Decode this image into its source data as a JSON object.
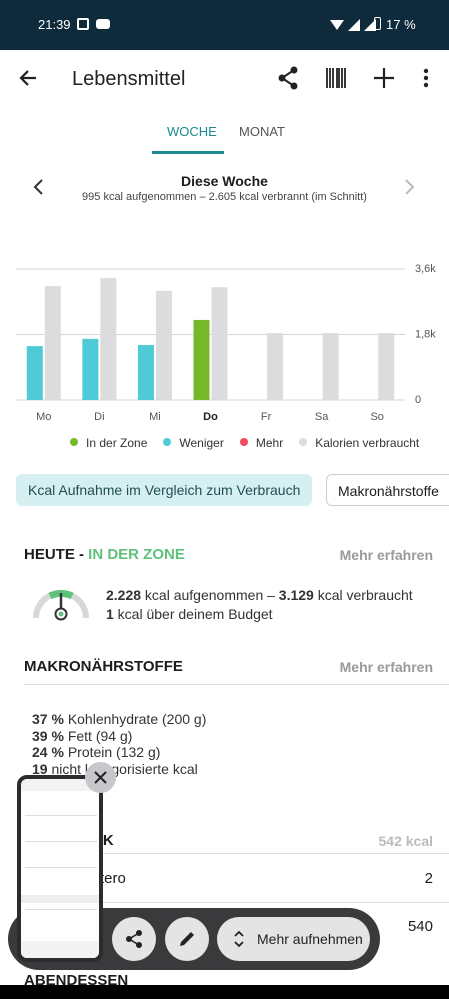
{
  "status_bar": {
    "time": "21:39",
    "battery": "17 %"
  },
  "app_bar": {
    "title": "Lebensmittel"
  },
  "tabs": [
    "WOCHE",
    "MONAT"
  ],
  "week": {
    "title": "Diese Woche",
    "subtitle": "995 kcal aufgenommen – 2.605 kcal verbrannt (im Schnitt)"
  },
  "chart_data": {
    "type": "bar",
    "categories": [
      "Mo",
      "Di",
      "Mi",
      "Do",
      "Fr",
      "Sa",
      "So"
    ],
    "series": [
      {
        "name": "In der Zone",
        "color": "#76b82a",
        "values": [
          null,
          null,
          null,
          2200,
          null,
          null,
          null
        ]
      },
      {
        "name": "Weniger",
        "color": "#4ecbd6",
        "values": [
          1480,
          1680,
          1510,
          null,
          null,
          null,
          null
        ]
      },
      {
        "name": "Mehr",
        "color": "#ef4b5e",
        "values": [
          null,
          null,
          null,
          null,
          null,
          null,
          null
        ]
      },
      {
        "name": "Kalorien verbraucht",
        "color": "#dcdcdf",
        "values": [
          3130,
          3350,
          3000,
          3100,
          1840,
          1840,
          1840
        ]
      }
    ],
    "ylim": [
      0,
      3600
    ],
    "yticks": [
      0,
      {
        "value": 1800,
        "label": "1,8k"
      },
      {
        "value": 3600,
        "label": "3,6k"
      }
    ],
    "grid": true
  },
  "chips": [
    "Kcal Aufnahme im Vergleich zum Verbrauch",
    "Makronährstoffe"
  ],
  "today": {
    "heading": "HEUTE - ",
    "status": "IN DER ZONE",
    "link": "Mehr erfahren",
    "line1": [
      "2.228",
      " kcal aufgenommen – ",
      "3.129",
      " kcal verbraucht"
    ],
    "line2": [
      "1",
      " kcal über deinem Budget"
    ]
  },
  "macros": {
    "heading": "MAKRONÄHRSTOFFE",
    "link": "Mehr erfahren",
    "rows": [
      [
        "37 %",
        "Kohlenhydrate (200 g)"
      ],
      [
        "39 %",
        "Fett (94 g)"
      ],
      [
        "24 %",
        "Protein (132 g)"
      ],
      [
        "19",
        "nicht kategorisierte kcal"
      ]
    ]
  },
  "meal": {
    "heading": "CK",
    "kcal": "542 kcal",
    "rows": [
      [
        "tero",
        "2"
      ],
      [
        "",
        "540"
      ]
    ],
    "next": "ABENDESSEN"
  },
  "toolbar": {
    "button": "Mehr aufnehmen"
  }
}
